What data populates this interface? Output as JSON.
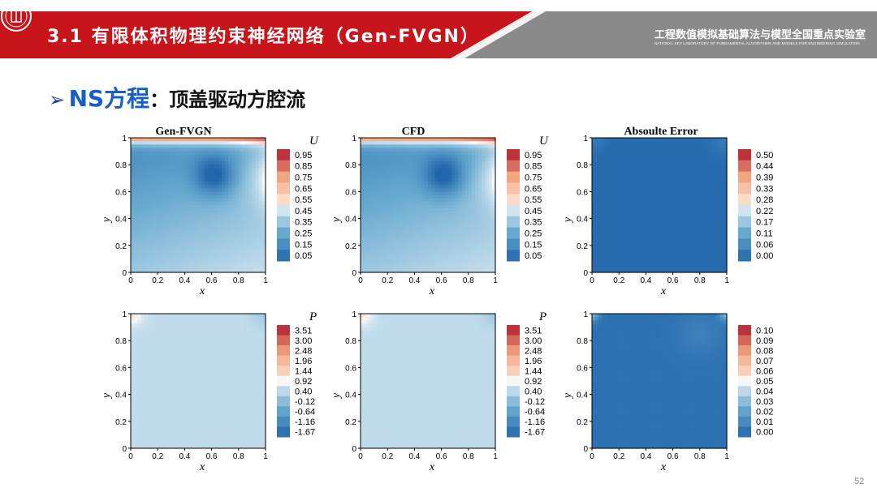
{
  "header": {
    "title": "3.1 有限体积物理约束神经网络（Gen-FVGN）",
    "lab_name": "工程数值模拟基础算法与模型全国重点实验室",
    "lab_subtitle": "NATIONAL KEY LABORATORY OF FUNDAMENTAL ALGORITHMS AND MODELS FOR ENGINEERING SIMULATION",
    "colors": {
      "red": "#c8151c",
      "gray": "#8a8a8a"
    }
  },
  "section": {
    "bullet": "➢",
    "keyword": "NS方程",
    "rest": "：顶盖驱动方腔流"
  },
  "page_number": "52",
  "chart_data": {
    "type": "heatmap",
    "columns": [
      "Gen-FVGN",
      "CFD",
      "Absoulte Error"
    ],
    "x_label": "x",
    "y_label": "y",
    "ticks": [
      0,
      0.2,
      0.4,
      0.6,
      0.8,
      1
    ],
    "panels": [
      {
        "row": "U",
        "column": "Gen-FVGN",
        "colorbar_title": "U",
        "field": "u_velocity",
        "levels": [
          "0.95",
          "0.85",
          "0.75",
          "0.65",
          "0.55",
          "0.45",
          "0.35",
          "0.25",
          "0.15",
          "0.05"
        ]
      },
      {
        "row": "U",
        "column": "CFD",
        "colorbar_title": "U",
        "field": "u_velocity",
        "levels": [
          "0.95",
          "0.85",
          "0.75",
          "0.65",
          "0.55",
          "0.45",
          "0.35",
          "0.25",
          "0.15",
          "0.05"
        ]
      },
      {
        "row": "U",
        "column": "Absoulte Error",
        "colorbar_title": "",
        "field": "u_error",
        "levels": [
          "0.50",
          "0.44",
          "0.39",
          "0.33",
          "0.28",
          "0.22",
          "0.17",
          "0.11",
          "0.06",
          "0.00"
        ]
      },
      {
        "row": "P",
        "column": "Gen-FVGN",
        "colorbar_title": "P",
        "field": "pressure",
        "levels": [
          "3.51",
          "3.00",
          "2.48",
          "1.96",
          "1.44",
          "0.92",
          "0.40",
          "-0.12",
          "-0.64",
          "-1.16",
          "-1.67"
        ]
      },
      {
        "row": "P",
        "column": "CFD",
        "colorbar_title": "P",
        "field": "pressure",
        "levels": [
          "3.51",
          "3.00",
          "2.48",
          "1.96",
          "1.44",
          "0.92",
          "0.40",
          "-0.12",
          "-0.64",
          "-1.16",
          "-1.67"
        ]
      },
      {
        "row": "P",
        "column": "Absoulte Error",
        "colorbar_title": "",
        "field": "p_error",
        "levels": [
          "0.10",
          "0.09",
          "0.08",
          "0.07",
          "0.06",
          "0.05",
          "0.04",
          "0.03",
          "0.02",
          "0.01",
          "0.00"
        ]
      }
    ]
  }
}
